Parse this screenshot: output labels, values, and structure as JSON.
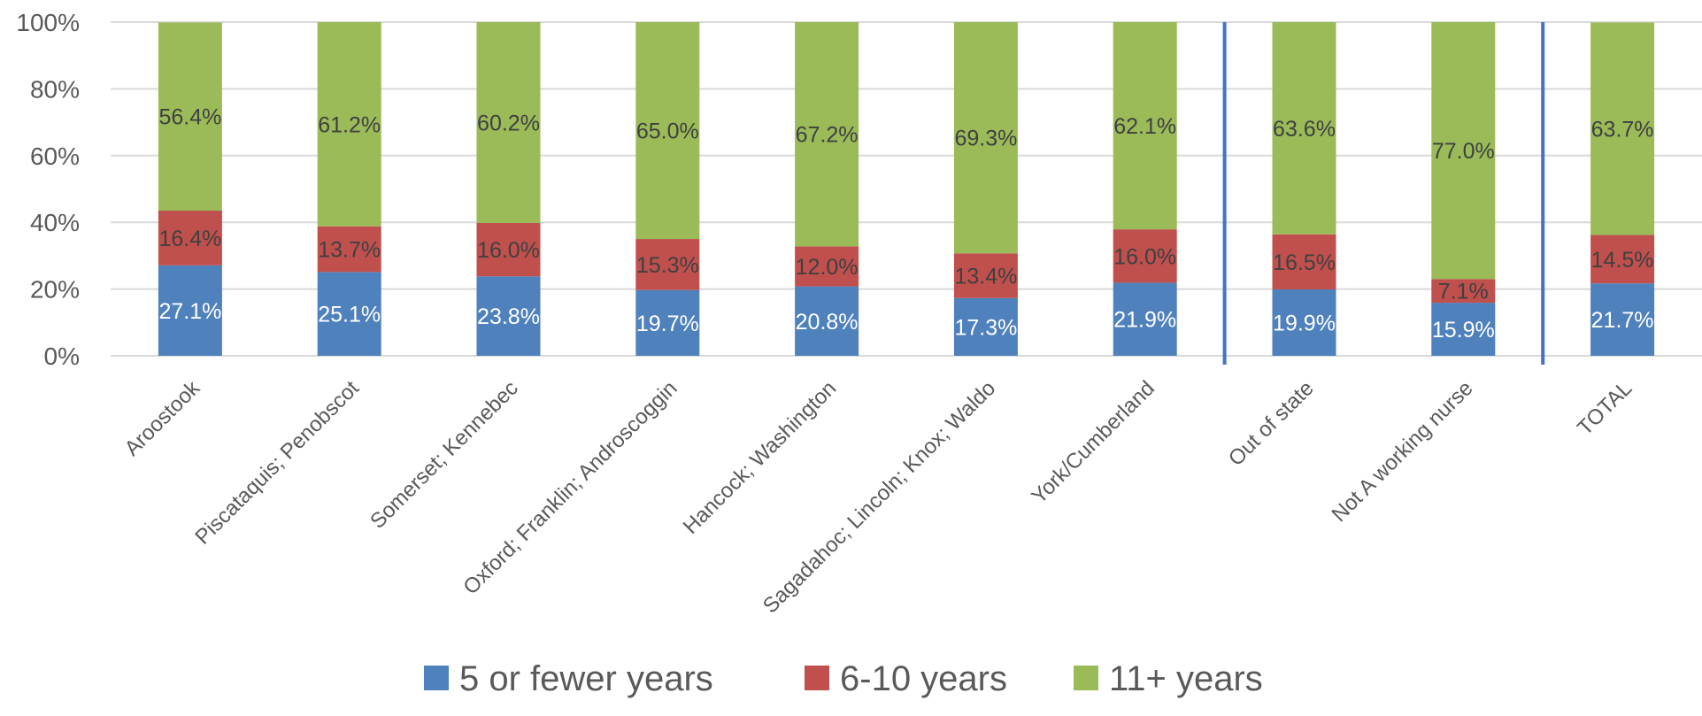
{
  "chart_data": {
    "type": "bar",
    "stacked": true,
    "percent_stacked": true,
    "title": "",
    "xlabel": "",
    "ylabel": "",
    "ylim": [
      0,
      100
    ],
    "yticks": [
      "0%",
      "20%",
      "40%",
      "60%",
      "80%",
      "100%"
    ],
    "grid": "horizontal",
    "legend_position": "bottom",
    "categories": [
      "Aroostook",
      "Piscataquis; Penobscot",
      "Somerset; Kennebec",
      "Oxford; Franklin; Androscoggin",
      "Hancock; Washington",
      "Sagadahoc; Lincoln; Knox; Waldo",
      "York/Cumberland",
      "Out of state",
      "Not A working nurse",
      "TOTAL"
    ],
    "separators_after_index": [
      6,
      8
    ],
    "series": [
      {
        "name": "5 or fewer years",
        "color": "#4F81BD",
        "label_color": "#ffffff",
        "values": [
          27.1,
          25.1,
          23.8,
          19.7,
          20.8,
          17.3,
          21.9,
          19.9,
          15.9,
          21.7
        ],
        "labels": [
          "27.1%",
          "25.1%",
          "23.8%",
          "19.7%",
          "20.8%",
          "17.3%",
          "21.9%",
          "19.9%",
          "15.9%",
          "21.7%"
        ]
      },
      {
        "name": "6-10 years",
        "color": "#C0504D",
        "label_color": "#404040",
        "values": [
          16.4,
          13.7,
          16.0,
          15.3,
          12.0,
          13.4,
          16.0,
          16.5,
          7.1,
          14.5
        ],
        "labels": [
          "16.4%",
          "13.7%",
          "16.0%",
          "15.3%",
          "12.0%",
          "13.4%",
          "16.0%",
          "16.5%",
          "7.1%",
          "14.5%"
        ]
      },
      {
        "name": "11+ years",
        "color": "#9BBB59",
        "label_color": "#404040",
        "values": [
          56.4,
          61.2,
          60.2,
          65.0,
          67.2,
          69.3,
          62.1,
          63.6,
          77.0,
          63.7
        ],
        "labels": [
          "56.4%",
          "61.2%",
          "60.2%",
          "65.0%",
          "67.2%",
          "69.3%",
          "62.1%",
          "63.6%",
          "77.0%",
          "63.7%"
        ]
      }
    ],
    "colors": {
      "gridline": "#D9D9D9",
      "separator": "#4472C4",
      "axis_text": "#595959"
    }
  }
}
